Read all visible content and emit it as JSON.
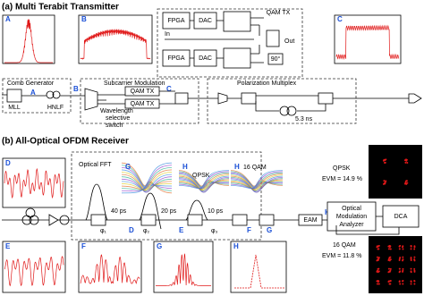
{
  "transmitter": {
    "title": "(a) Multi Terabit Transmitter",
    "insets": [
      "A",
      "B",
      "C"
    ],
    "qam_tx": {
      "title": "QAM TX",
      "fpga": [
        "FPGA",
        "FPGA"
      ],
      "dac": [
        "DAC",
        "DAC"
      ],
      "input": "In",
      "output": "Out",
      "phase": "90°"
    },
    "comb_generator": {
      "title": "Comb Generator",
      "point": "A",
      "mll": "MLL",
      "hnlf": "HNLF"
    },
    "subcarrier_modulation": {
      "title": "Subcarrier Modulation",
      "point_in": "B",
      "modulators": [
        "QAM TX",
        "QAM TX"
      ],
      "point_out": "C",
      "wss": [
        "Wavelength",
        "selective",
        "switch"
      ]
    },
    "polarization_multiplex": {
      "title": "Polarization Multiplex",
      "delay": "5.3 ns"
    }
  },
  "receiver": {
    "title": "(b) All-Optical OFDM Receiver",
    "inset_top": "D",
    "insets_bottom": [
      "E",
      "F",
      "G",
      "H"
    ],
    "fft": {
      "title": "Optical FFT",
      "eye_labels": [
        "G",
        "H",
        "H"
      ],
      "eye_titles": [
        "QPSK",
        "16 QAM"
      ],
      "delays": [
        "40 ps",
        "20 ps",
        "10 ps"
      ],
      "phases": [
        "φ₁",
        "φ₂",
        "φ₃"
      ],
      "points": [
        "D",
        "E",
        "F",
        "G"
      ]
    },
    "eam": "EAM",
    "point_out": "H",
    "analyzer": [
      "Optical",
      "Modulation",
      "Analyzer"
    ],
    "dca": "DCA",
    "qpsk": {
      "title": "QPSK",
      "evm": "EVM = 14.9 %"
    },
    "qam16": {
      "title": "16 QAM",
      "evm": "EVM = 11.8 %"
    }
  }
}
